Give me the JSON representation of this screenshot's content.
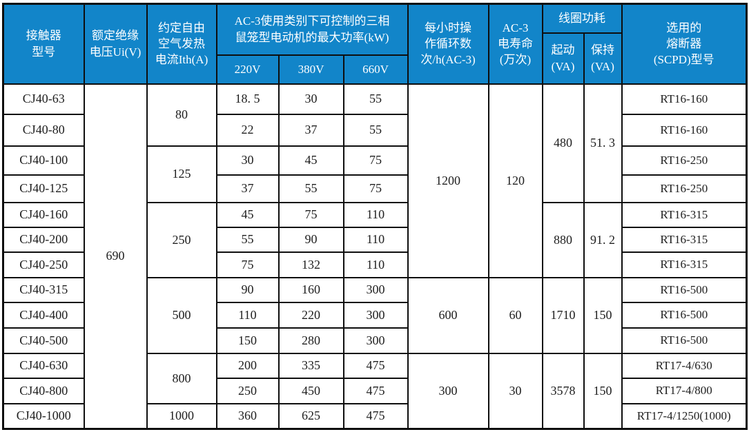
{
  "table": {
    "title_semantic": "CJ40 contactor specification table",
    "colors": {
      "header_bg": "#1285C9",
      "header_text": "#FFFFFF",
      "border": "#0E0E0E",
      "body_text": "#1E1E1E"
    },
    "header": {
      "model": "接触器\n型号",
      "insulation_voltage": "额定绝缘\n电压Ui(V)",
      "thermal_current": "约定自由\n空气发热\n电流Ith(A)",
      "ac3_max_power": "AC-3使用类别下可控制的三相\n鼠笼型电动机的最大功率(kW)",
      "voltage_220": "220V",
      "voltage_380": "380V",
      "voltage_660": "660V",
      "cycles_per_hour": "每小时操\n作循环数\n次/h(AC-3)",
      "ac3_electrical_life": "AC-3\n电寿命\n(万次)",
      "coil_power": "线圈功耗",
      "coil_start": "起动\n(VA)",
      "coil_hold": "保持\n(VA)",
      "fuse_type": "选用的\n熔断器\n(SCPD)型号"
    },
    "insulation_voltage_value": "690",
    "rows": [
      {
        "model": "CJ40-63",
        "kw220": "18. 5",
        "kw380": "30",
        "kw660": "55",
        "fuse": "RT16-160"
      },
      {
        "model": "CJ40-80",
        "kw220": "22",
        "kw380": "37",
        "kw660": "55",
        "fuse": "RT16-160"
      },
      {
        "model": "CJ40-100",
        "kw220": "30",
        "kw380": "45",
        "kw660": "75",
        "fuse": "RT16-250"
      },
      {
        "model": "CJ40-125",
        "kw220": "37",
        "kw380": "55",
        "kw660": "75",
        "fuse": "RT16-250"
      },
      {
        "model": "CJ40-160",
        "kw220": "45",
        "kw380": "75",
        "kw660": "110",
        "fuse": "RT16-315"
      },
      {
        "model": "CJ40-200",
        "kw220": "55",
        "kw380": "90",
        "kw660": "110",
        "fuse": "RT16-315"
      },
      {
        "model": "CJ40-250",
        "kw220": "75",
        "kw380": "132",
        "kw660": "110",
        "fuse": "RT16-315"
      },
      {
        "model": "CJ40-315",
        "kw220": "90",
        "kw380": "160",
        "kw660": "300",
        "fuse": "RT16-500"
      },
      {
        "model": "CJ40-400",
        "kw220": "110",
        "kw380": "220",
        "kw660": "300",
        "fuse": "RT16-500"
      },
      {
        "model": "CJ40-500",
        "kw220": "150",
        "kw380": "280",
        "kw660": "300",
        "fuse": "RT16-500"
      },
      {
        "model": "CJ40-630",
        "kw220": "200",
        "kw380": "335",
        "kw660": "475",
        "fuse": "RT17-4/630"
      },
      {
        "model": "CJ40-800",
        "kw220": "250",
        "kw380": "450",
        "kw660": "475",
        "fuse": "RT17-4/800"
      },
      {
        "model": "CJ40-1000",
        "kw220": "360",
        "kw380": "625",
        "kw660": "475",
        "fuse": "RT17-4/1250(1000)"
      }
    ],
    "merged": {
      "thermal_current": [
        {
          "start": 0,
          "span": 2,
          "value": "80"
        },
        {
          "start": 2,
          "span": 2,
          "value": "125"
        },
        {
          "start": 4,
          "span": 3,
          "value": "250"
        },
        {
          "start": 7,
          "span": 3,
          "value": "500"
        },
        {
          "start": 10,
          "span": 2,
          "value": "800"
        },
        {
          "start": 12,
          "span": 1,
          "value": "1000"
        }
      ],
      "cycles_per_hour": [
        {
          "start": 0,
          "span": 7,
          "value": "1200"
        },
        {
          "start": 7,
          "span": 3,
          "value": "600"
        },
        {
          "start": 10,
          "span": 3,
          "value": "300"
        }
      ],
      "ac3_electrical_life": [
        {
          "start": 0,
          "span": 7,
          "value": "120"
        },
        {
          "start": 7,
          "span": 3,
          "value": "60"
        },
        {
          "start": 10,
          "span": 3,
          "value": "30"
        }
      ],
      "coil_start": [
        {
          "start": 0,
          "span": 4,
          "value": "480"
        },
        {
          "start": 4,
          "span": 3,
          "value": "880"
        },
        {
          "start": 7,
          "span": 3,
          "value": "1710"
        },
        {
          "start": 10,
          "span": 3,
          "value": "3578"
        }
      ],
      "coil_hold": [
        {
          "start": 0,
          "span": 4,
          "value": "51. 3"
        },
        {
          "start": 4,
          "span": 3,
          "value": "91. 2"
        },
        {
          "start": 7,
          "span": 3,
          "value": "150"
        },
        {
          "start": 10,
          "span": 3,
          "value": "150"
        }
      ]
    }
  }
}
